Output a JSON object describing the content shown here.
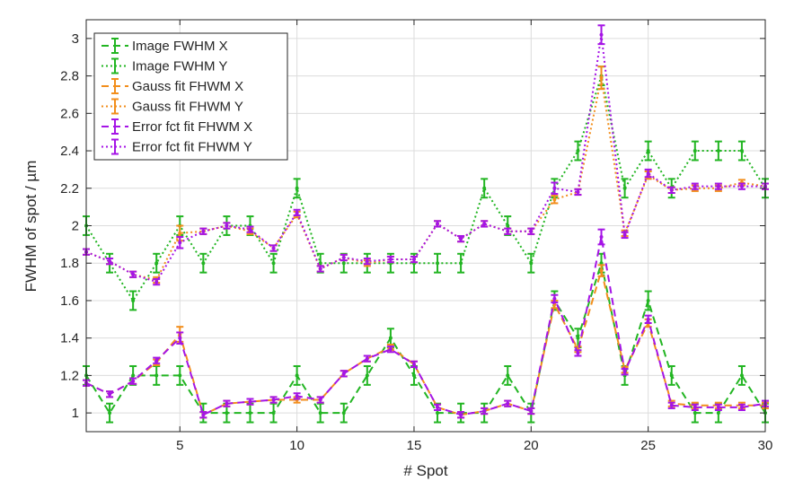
{
  "chart_data": {
    "type": "line",
    "xlabel": "# Spot",
    "ylabel": "FWHM of spot / µm",
    "xlim": [
      1,
      30
    ],
    "ylim": [
      0.9,
      3.1
    ],
    "x_ticks": [
      5,
      10,
      15,
      20,
      25,
      30
    ],
    "y_ticks": [
      1,
      1.2,
      1.4,
      1.6,
      1.8,
      2,
      2.2,
      2.4,
      2.6,
      2.8,
      3
    ],
    "grid": true,
    "legend_position": "top-left",
    "x": [
      1,
      2,
      3,
      4,
      5,
      6,
      7,
      8,
      9,
      10,
      11,
      12,
      13,
      14,
      15,
      16,
      17,
      18,
      19,
      20,
      21,
      22,
      23,
      24,
      25,
      26,
      27,
      28,
      29,
      30
    ],
    "series": [
      {
        "name": "Image FWHM X",
        "color": "#22b522",
        "dash": "8,5",
        "markersize": 2,
        "values": [
          1.2,
          1.0,
          1.2,
          1.2,
          1.2,
          1.0,
          1.0,
          1.0,
          1.0,
          1.2,
          1.0,
          1.0,
          1.2,
          1.4,
          1.2,
          1.0,
          1.0,
          1.0,
          1.2,
          1.0,
          1.6,
          1.4,
          1.8,
          1.2,
          1.6,
          1.2,
          1.0,
          1.0,
          1.2,
          1.0
        ],
        "errors": [
          0.05,
          0.05,
          0.05,
          0.05,
          0.05,
          0.05,
          0.05,
          0.05,
          0.05,
          0.05,
          0.05,
          0.05,
          0.05,
          0.05,
          0.05,
          0.05,
          0.05,
          0.05,
          0.05,
          0.05,
          0.05,
          0.05,
          0.05,
          0.05,
          0.05,
          0.05,
          0.05,
          0.05,
          0.05,
          0.05
        ]
      },
      {
        "name": "Image FWHM Y",
        "color": "#22b522",
        "dash": "2,3",
        "markersize": 2,
        "values": [
          2.0,
          1.8,
          1.6,
          1.8,
          2.0,
          1.8,
          2.0,
          2.0,
          1.8,
          2.2,
          1.8,
          1.8,
          1.8,
          1.8,
          1.8,
          1.8,
          1.8,
          2.2,
          2.0,
          1.8,
          2.2,
          2.4,
          2.8,
          2.2,
          2.4,
          2.2,
          2.4,
          2.4,
          2.4,
          2.2
        ],
        "errors": [
          0.05,
          0.05,
          0.05,
          0.05,
          0.05,
          0.05,
          0.05,
          0.05,
          0.05,
          0.05,
          0.05,
          0.05,
          0.05,
          0.05,
          0.05,
          0.05,
          0.05,
          0.05,
          0.05,
          0.05,
          0.05,
          0.05,
          0.05,
          0.05,
          0.05,
          0.05,
          0.05,
          0.05,
          0.05,
          0.05
        ]
      },
      {
        "name": "Gauss fit FHWM X",
        "color": "#f28e1c",
        "dash": "8,5",
        "markersize": 2,
        "values": [
          1.16,
          1.1,
          1.17,
          1.27,
          1.42,
          0.99,
          1.05,
          1.06,
          1.07,
          1.07,
          1.07,
          1.21,
          1.29,
          1.35,
          1.26,
          1.03,
          0.99,
          1.01,
          1.05,
          1.01,
          1.58,
          1.34,
          1.76,
          1.23,
          1.48,
          1.05,
          1.04,
          1.04,
          1.04,
          1.04
        ],
        "errors": [
          0.015,
          0.015,
          0.015,
          0.015,
          0.04,
          0.015,
          0.015,
          0.015,
          0.015,
          0.015,
          0.015,
          0.015,
          0.015,
          0.015,
          0.015,
          0.015,
          0.015,
          0.015,
          0.015,
          0.015,
          0.02,
          0.015,
          0.03,
          0.015,
          0.02,
          0.015,
          0.015,
          0.015,
          0.015,
          0.015
        ]
      },
      {
        "name": "Gauss fit FHWM Y",
        "color": "#f28e1c",
        "dash": "2,3",
        "markersize": 2,
        "values": [
          1.86,
          1.81,
          1.74,
          1.71,
          1.96,
          1.97,
          2.0,
          1.97,
          1.88,
          2.06,
          1.77,
          1.83,
          1.8,
          1.82,
          1.82,
          2.01,
          1.93,
          2.01,
          1.97,
          1.97,
          2.14,
          2.18,
          2.79,
          1.96,
          2.27,
          2.19,
          2.2,
          2.2,
          2.23,
          2.21
        ],
        "errors": [
          0.015,
          0.015,
          0.015,
          0.015,
          0.04,
          0.015,
          0.015,
          0.015,
          0.015,
          0.015,
          0.015,
          0.015,
          0.015,
          0.015,
          0.015,
          0.015,
          0.015,
          0.015,
          0.015,
          0.015,
          0.02,
          0.015,
          0.06,
          0.015,
          0.02,
          0.015,
          0.015,
          0.015,
          0.015,
          0.015
        ]
      },
      {
        "name": "Error fct fit FHWM X",
        "color": "#a514e6",
        "dash": "8,5",
        "markersize": 2,
        "values": [
          1.16,
          1.1,
          1.17,
          1.28,
          1.4,
          0.99,
          1.05,
          1.06,
          1.07,
          1.09,
          1.07,
          1.21,
          1.29,
          1.34,
          1.26,
          1.03,
          0.99,
          1.01,
          1.05,
          1.01,
          1.61,
          1.32,
          1.94,
          1.22,
          1.5,
          1.04,
          1.03,
          1.03,
          1.03,
          1.05
        ],
        "errors": [
          0.015,
          0.015,
          0.015,
          0.015,
          0.03,
          0.015,
          0.015,
          0.015,
          0.015,
          0.015,
          0.015,
          0.015,
          0.015,
          0.015,
          0.015,
          0.015,
          0.015,
          0.015,
          0.015,
          0.015,
          0.02,
          0.015,
          0.04,
          0.015,
          0.02,
          0.015,
          0.015,
          0.015,
          0.015,
          0.015
        ]
      },
      {
        "name": "Error fct fit FHWM Y",
        "color": "#a514e6",
        "dash": "2,3",
        "markersize": 2,
        "values": [
          1.86,
          1.81,
          1.74,
          1.7,
          1.91,
          1.97,
          2.0,
          1.98,
          1.88,
          2.07,
          1.77,
          1.83,
          1.81,
          1.82,
          1.82,
          2.01,
          1.93,
          2.01,
          1.97,
          1.97,
          2.2,
          2.18,
          3.02,
          1.95,
          2.28,
          2.19,
          2.21,
          2.21,
          2.21,
          2.21
        ],
        "errors": [
          0.015,
          0.015,
          0.015,
          0.015,
          0.03,
          0.015,
          0.015,
          0.015,
          0.015,
          0.015,
          0.015,
          0.015,
          0.015,
          0.015,
          0.015,
          0.015,
          0.015,
          0.015,
          0.015,
          0.015,
          0.03,
          0.015,
          0.05,
          0.015,
          0.02,
          0.015,
          0.015,
          0.015,
          0.015,
          0.015
        ]
      }
    ]
  }
}
